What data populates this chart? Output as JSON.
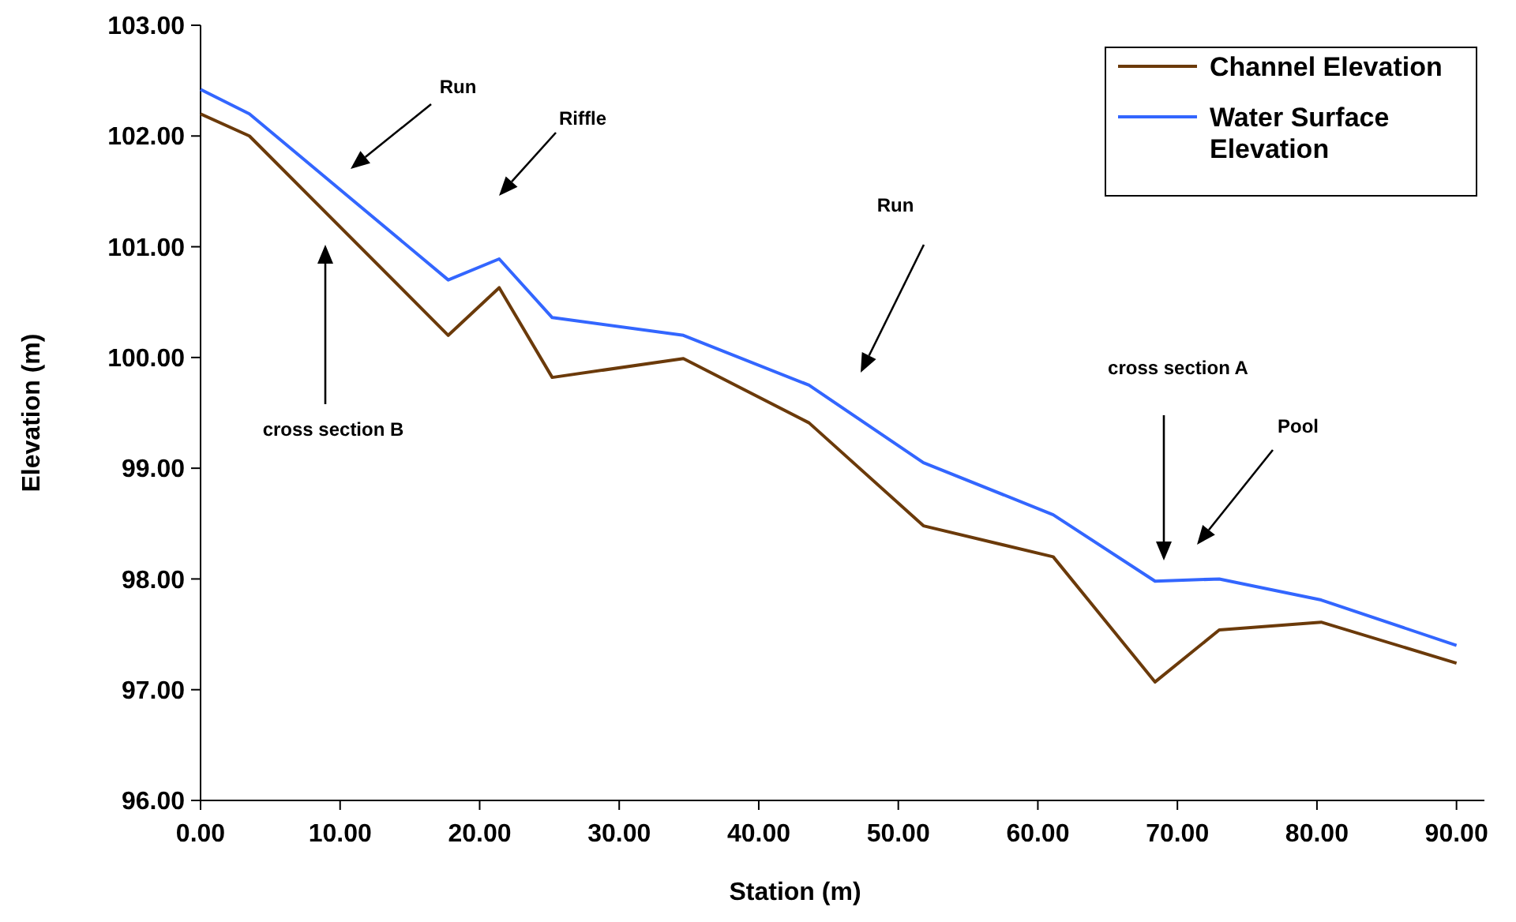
{
  "chart_data": {
    "type": "line",
    "xlabel": "Station (m)",
    "ylabel": "Elevation (m)",
    "xlim": [
      0,
      92
    ],
    "xticks": [
      {
        "value": 0,
        "label": "0.00"
      },
      {
        "value": 10,
        "label": "10.00"
      },
      {
        "value": 20,
        "label": "20.00"
      },
      {
        "value": 30,
        "label": "30.00"
      },
      {
        "value": 40,
        "label": "40.00"
      },
      {
        "value": 50,
        "label": "50.00"
      },
      {
        "value": 60,
        "label": "60.00"
      },
      {
        "value": 70,
        "label": "70.00"
      },
      {
        "value": 80,
        "label": "80.00"
      },
      {
        "value": 90,
        "label": "90.00"
      }
    ],
    "ylim": [
      96,
      103
    ],
    "yticks": [
      {
        "value": 96,
        "label": "96.00"
      },
      {
        "value": 97,
        "label": "97.00"
      },
      {
        "value": 98,
        "label": "98.00"
      },
      {
        "value": 99,
        "label": "99.00"
      },
      {
        "value": 100,
        "label": "100.00"
      },
      {
        "value": 101,
        "label": "101.00"
      },
      {
        "value": 102,
        "label": "102.00"
      },
      {
        "value": 103,
        "label": "103.00"
      }
    ],
    "x": [
      0,
      3.5,
      17.75,
      21.4,
      25.2,
      34.6,
      43.6,
      51.8,
      61.1,
      68.4,
      73.0,
      80.3,
      90
    ],
    "series": [
      {
        "name": "Channel Elevation",
        "color": "#6b3a0a",
        "values": [
          102.2,
          102.0,
          100.2,
          100.63,
          99.82,
          99.99,
          99.41,
          98.48,
          98.2,
          97.07,
          97.54,
          97.61,
          97.24
        ]
      },
      {
        "name": "Water Surface Elevation",
        "color": "#3366ff",
        "values": [
          102.42,
          102.2,
          100.7,
          100.89,
          100.36,
          100.2,
          99.75,
          99.05,
          98.58,
          97.98,
          98.0,
          97.81,
          97.4
        ]
      }
    ],
    "annotations": [
      "Run",
      "Riffle",
      "Run",
      "cross section B",
      "cross section A",
      "Pool"
    ],
    "legend": "top right",
    "grid": false,
    "marker": "none",
    "line_style": "solid"
  }
}
